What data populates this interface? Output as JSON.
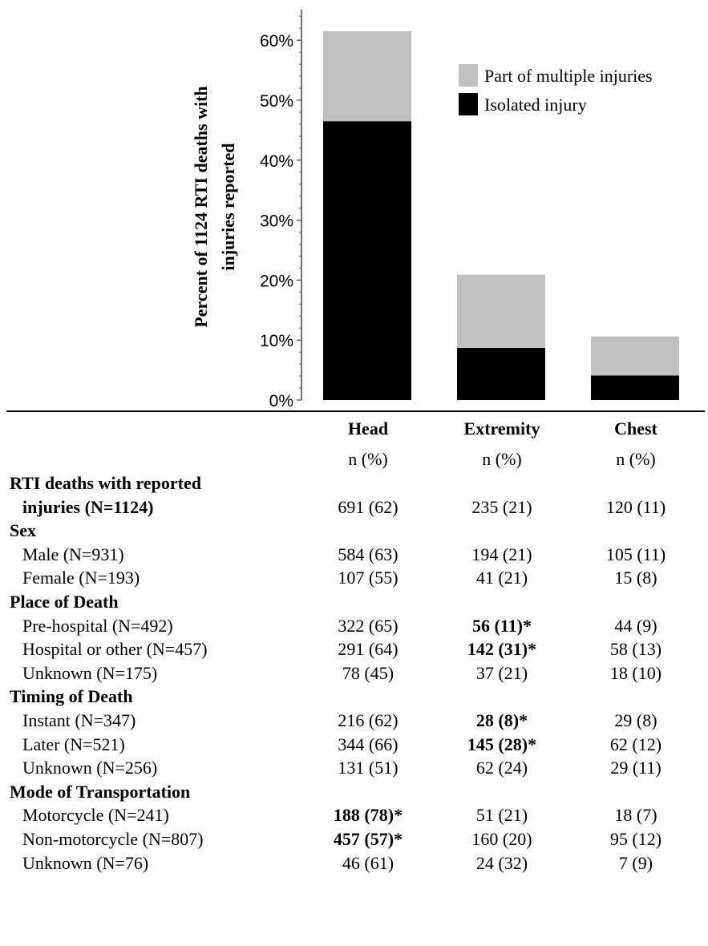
{
  "chart_data": {
    "type": "bar",
    "stacked": true,
    "categories": [
      "Head",
      "Extremity",
      "Chest"
    ],
    "series": [
      {
        "name": "Isolated injury",
        "color": "#000000",
        "values": [
          46.5,
          8.7,
          4.1
        ]
      },
      {
        "name": "Part of multiple injuries",
        "color": "#c0c0c0",
        "values": [
          15.0,
          12.2,
          6.5
        ]
      }
    ],
    "ylabel_line1": "Percent of 1124 RTI deaths with",
    "ylabel_line2": "injuries reported",
    "ylim": [
      0,
      65
    ],
    "yticks": [
      {
        "value": 0,
        "label": "0%"
      },
      {
        "value": 10,
        "label": "10%"
      },
      {
        "value": 20,
        "label": "20%"
      },
      {
        "value": 30,
        "label": "30%"
      },
      {
        "value": 40,
        "label": "40%"
      },
      {
        "value": 50,
        "label": "50%"
      },
      {
        "value": 60,
        "label": "60%"
      }
    ],
    "legend_position": "top-right",
    "legend": [
      {
        "label": "Part of multiple injuries",
        "color": "#c0c0c0"
      },
      {
        "label": "Isolated injury",
        "color": "#000000"
      }
    ]
  },
  "table": {
    "columns": [
      {
        "name": "Head",
        "sub": "n (%)"
      },
      {
        "name": "Extremity",
        "sub": "n (%)"
      },
      {
        "name": "Chest",
        "sub": "n (%)"
      }
    ],
    "rows": [
      {
        "label": "RTI deaths with reported",
        "bold": true,
        "indent": false,
        "section": true,
        "values": [
          "",
          "",
          ""
        ]
      },
      {
        "label": "injuries (N=1124)",
        "bold": true,
        "indent": true,
        "values": [
          "691 (62)",
          "235 (21)",
          "120 (11)"
        ],
        "bold_values": [
          false,
          false,
          false
        ]
      },
      {
        "label": "Sex",
        "bold": true,
        "indent": false,
        "section": true,
        "values": [
          "",
          "",
          ""
        ]
      },
      {
        "label": "Male (N=931)",
        "indent": true,
        "values": [
          "584 (63)",
          "194 (21)",
          "105 (11)"
        ],
        "bold_values": [
          false,
          false,
          false
        ]
      },
      {
        "label": "Female (N=193)",
        "indent": true,
        "values": [
          "107 (55)",
          "41 (21)",
          "15 (8)"
        ],
        "bold_values": [
          false,
          false,
          false
        ]
      },
      {
        "label": "Place of Death",
        "bold": true,
        "indent": false,
        "section": true,
        "values": [
          "",
          "",
          ""
        ]
      },
      {
        "label": "Pre-hospital (N=492)",
        "indent": true,
        "values": [
          "322 (65)",
          "56 (11)*",
          "44 (9)"
        ],
        "bold_values": [
          false,
          true,
          false
        ]
      },
      {
        "label": "Hospital or other (N=457)",
        "indent": true,
        "values": [
          "291 (64)",
          "142 (31)*",
          "58 (13)"
        ],
        "bold_values": [
          false,
          true,
          false
        ]
      },
      {
        "label": "Unknown (N=175)",
        "indent": true,
        "values": [
          "78 (45)",
          "37 (21)",
          "18 (10)"
        ],
        "bold_values": [
          false,
          false,
          false
        ]
      },
      {
        "label": "Timing of Death",
        "bold": true,
        "indent": false,
        "section": true,
        "values": [
          "",
          "",
          ""
        ]
      },
      {
        "label": "Instant (N=347)",
        "indent": true,
        "values": [
          "216 (62)",
          "28 (8)*",
          "29 (8)"
        ],
        "bold_values": [
          false,
          true,
          false
        ]
      },
      {
        "label": "Later (N=521)",
        "indent": true,
        "values": [
          "344 (66)",
          "145 (28)*",
          "62 (12)"
        ],
        "bold_values": [
          false,
          true,
          false
        ]
      },
      {
        "label": "Unknown (N=256)",
        "indent": true,
        "values": [
          "131 (51)",
          "62 (24)",
          "29 (11)"
        ],
        "bold_values": [
          false,
          false,
          false
        ]
      },
      {
        "label": "Mode of Transportation",
        "bold": true,
        "indent": false,
        "section": true,
        "values": [
          "",
          "",
          ""
        ]
      },
      {
        "label": "Motorcycle (N=241)",
        "indent": true,
        "values": [
          "188 (78)*",
          "51 (21)",
          "18 (7)"
        ],
        "bold_values": [
          true,
          false,
          false
        ]
      },
      {
        "label": "Non-motorcycle (N=807)",
        "indent": true,
        "values": [
          "457 (57)*",
          "160 (20)",
          "95 (12)"
        ],
        "bold_values": [
          true,
          false,
          false
        ]
      },
      {
        "label": "Unknown (N=76)",
        "indent": true,
        "values": [
          "46 (61)",
          "24 (32)",
          "7 (9)"
        ],
        "bold_values": [
          false,
          false,
          false
        ]
      }
    ]
  }
}
